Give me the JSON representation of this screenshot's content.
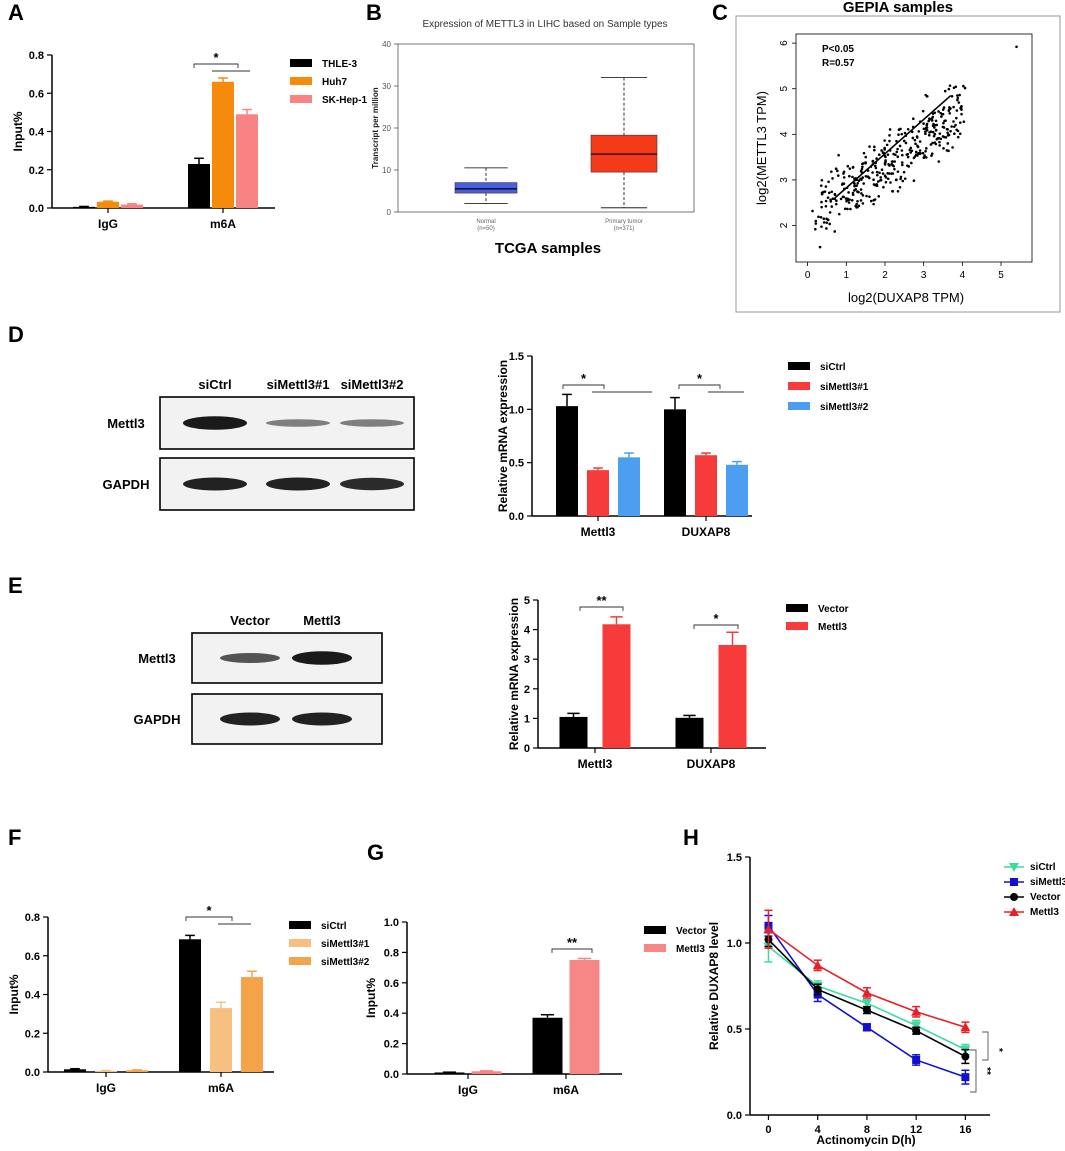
{
  "panels": {
    "A": "A",
    "B": "B",
    "C": "C",
    "D": "D",
    "E": "E",
    "F": "F",
    "G": "G",
    "H": "H"
  },
  "blots": {
    "D": {
      "lanes": [
        "siCtrl",
        "siMettl3#1",
        "siMettl3#2"
      ],
      "rows": [
        "Mettl3",
        "GAPDH"
      ],
      "intensity": [
        [
          0.95,
          0.35,
          0.35
        ],
        [
          0.9,
          0.9,
          0.85
        ]
      ]
    },
    "E": {
      "lanes": [
        "Vector",
        "Mettl3"
      ],
      "rows": [
        "Mettl3",
        "GAPDH"
      ],
      "intensity": [
        [
          0.6,
          0.95
        ],
        [
          0.9,
          0.9
        ]
      ]
    }
  },
  "colors": {
    "black": "#000000",
    "orange": "#f58a0b",
    "pink": "#f78383",
    "red": "#f73b3b",
    "blue": "#4c9ef0",
    "lightorange": "#f8c080",
    "midorange": "#f5a34a",
    "salmon": "#f78787",
    "h_sictrl": "#3cdca0",
    "h_simettl3": "#1010d0",
    "h_vector": "#000000",
    "h_mettl3": "#e8202a",
    "box_normal": "#4a5ee0",
    "box_tumor": "#f53a1a"
  },
  "chart_data": [
    {
      "id": "A",
      "type": "bar",
      "categories": [
        "IgG",
        "m6A"
      ],
      "series": [
        {
          "name": "THLE-3",
          "values": [
            0.006,
            0.23
          ],
          "errors": [
            0.002,
            0.03
          ],
          "color": "#000000"
        },
        {
          "name": "Huh7",
          "values": [
            0.033,
            0.66
          ],
          "errors": [
            0.003,
            0.02
          ],
          "color": "#f58a0b"
        },
        {
          "name": "SK-Hep-1",
          "values": [
            0.018,
            0.49
          ],
          "errors": [
            0.004,
            0.025
          ],
          "color": "#f78383"
        }
      ],
      "ylabel": "Input%",
      "ylim": [
        0,
        0.8
      ],
      "yticks": [
        "0.0",
        "0.2",
        "0.4",
        "0.6",
        "0.8"
      ],
      "sig": "*"
    },
    {
      "id": "B",
      "type": "box",
      "title": "Expression of METTL3 in LIHC based on Sample types",
      "ylabel": "Transcript per million",
      "ylim": [
        0,
        40
      ],
      "yticks": [
        "0",
        "10",
        "20",
        "30",
        "40"
      ],
      "groups": [
        {
          "name": "Normal",
          "n": "(n=50)",
          "min": 2,
          "q1": 4.5,
          "median": 5.5,
          "q3": 7,
          "max": 10.5,
          "color": "#4a5ee0"
        },
        {
          "name": "Primary tumor",
          "n": "(n=371)",
          "min": 1,
          "q1": 9.5,
          "median": 13.8,
          "q3": 18.3,
          "max": 32,
          "color": "#f53a1a"
        }
      ],
      "caption": "TCGA samples"
    },
    {
      "id": "C",
      "type": "scatter",
      "title": "GEPIA samples",
      "xlabel": "log2(DUXAP8 TPM)",
      "ylabel": "log2(METTL3 TPM)",
      "xlim": [
        -0.3,
        5.8
      ],
      "ylim": [
        1.2,
        6.2
      ],
      "xticks": [
        "0",
        "1",
        "2",
        "3",
        "4",
        "5"
      ],
      "yticks": [
        "2",
        "3",
        "4",
        "5",
        "6"
      ],
      "stats": [
        "P<0.05",
        "R=0.57"
      ],
      "fit": {
        "x": [
          0.7,
          3.7
        ],
        "y": [
          2.6,
          4.85
        ]
      },
      "n_points": 380
    },
    {
      "id": "D",
      "type": "bar",
      "categories": [
        "Mettl3",
        "DUXAP8"
      ],
      "series": [
        {
          "name": "siCtrl",
          "values": [
            1.03,
            1.0
          ],
          "errors": [
            0.11,
            0.11
          ],
          "color": "#000000"
        },
        {
          "name": "siMettl3#1",
          "values": [
            0.43,
            0.57
          ],
          "errors": [
            0.02,
            0.02
          ],
          "color": "#f73b3b"
        },
        {
          "name": "siMettl3#2",
          "values": [
            0.55,
            0.48
          ],
          "errors": [
            0.04,
            0.03
          ],
          "color": "#4c9ef0"
        }
      ],
      "ylabel": "Relative mRNA expression",
      "ylim": [
        0,
        1.5
      ],
      "yticks": [
        "0.0",
        "0.5",
        "1.0",
        "1.5"
      ],
      "sig": [
        "*",
        "*"
      ]
    },
    {
      "id": "E",
      "type": "bar",
      "categories": [
        "Mettl3",
        "DUXAP8"
      ],
      "series": [
        {
          "name": "Vector",
          "values": [
            1.05,
            1.02
          ],
          "errors": [
            0.12,
            0.08
          ],
          "color": "#000000"
        },
        {
          "name": "Mettl3",
          "values": [
            4.18,
            3.48
          ],
          "errors": [
            0.25,
            0.43
          ],
          "color": "#f73b3b"
        }
      ],
      "ylabel": "Relative mRNA expression",
      "ylim": [
        0,
        5
      ],
      "yticks": [
        "0",
        "1",
        "2",
        "3",
        "4",
        "5"
      ],
      "sig": [
        "**",
        "*"
      ]
    },
    {
      "id": "F",
      "type": "bar",
      "categories": [
        "IgG",
        "m6A"
      ],
      "series": [
        {
          "name": "siCtrl",
          "values": [
            0.014,
            0.685
          ],
          "errors": [
            0.003,
            0.02
          ],
          "color": "#000000"
        },
        {
          "name": "siMettl3#1",
          "values": [
            0.005,
            0.33
          ],
          "errors": [
            0.002,
            0.03
          ],
          "color": "#f8c080"
        },
        {
          "name": "siMettl3#2",
          "values": [
            0.009,
            0.49
          ],
          "errors": [
            0.002,
            0.03
          ],
          "color": "#f5a34a"
        }
      ],
      "ylabel": "Input%",
      "ylim": [
        0,
        0.8
      ],
      "yticks": [
        "0.0",
        "0.2",
        "0.4",
        "0.6",
        "0.8"
      ],
      "sig": "*"
    },
    {
      "id": "G",
      "type": "bar",
      "categories": [
        "IgG",
        "m6A"
      ],
      "series": [
        {
          "name": "Vector",
          "values": [
            0.01,
            0.37
          ],
          "errors": [
            0.002,
            0.02
          ],
          "color": "#000000"
        },
        {
          "name": "Mettl3",
          "values": [
            0.018,
            0.75
          ],
          "errors": [
            0.003,
            0.01
          ],
          "color": "#f78787"
        }
      ],
      "ylabel": "Input%",
      "ylim": [
        0,
        1.0
      ],
      "yticks": [
        "0.0",
        "0.2",
        "0.4",
        "0.6",
        "0.8",
        "1.0"
      ],
      "sig": "**"
    },
    {
      "id": "H",
      "type": "line",
      "x": [
        0,
        4,
        8,
        12,
        16
      ],
      "xlabel": "Actinomycin D(h)",
      "ylabel": "Relative DUXAP8 level",
      "xlim": [
        -1.5,
        18
      ],
      "ylim": [
        0,
        1.5
      ],
      "xticks": [
        "0",
        "4",
        "8",
        "12",
        "16"
      ],
      "yticks": [
        "0.0",
        "0.5",
        "1.0",
        "1.5"
      ],
      "series": [
        {
          "name": "siCtrl",
          "values": [
            0.98,
            0.75,
            0.65,
            0.52,
            0.38
          ],
          "errors": [
            0.09,
            0.03,
            0.02,
            0.03,
            0.03
          ],
          "color": "#3cdca0",
          "marker": "tri-down"
        },
        {
          "name": "siMettl3",
          "values": [
            1.1,
            0.7,
            0.51,
            0.32,
            0.22
          ],
          "errors": [
            0.06,
            0.04,
            0.02,
            0.03,
            0.04
          ],
          "color": "#1010d0",
          "marker": "square"
        },
        {
          "name": "Vector",
          "values": [
            1.02,
            0.73,
            0.61,
            0.49,
            0.34
          ],
          "errors": [
            0.04,
            0.03,
            0.02,
            0.02,
            0.04
          ],
          "color": "#000000",
          "marker": "circle"
        },
        {
          "name": "Mettl3",
          "values": [
            1.08,
            0.87,
            0.71,
            0.6,
            0.51
          ],
          "errors": [
            0.11,
            0.03,
            0.03,
            0.03,
            0.03
          ],
          "color": "#e8202a",
          "marker": "tri-up"
        }
      ],
      "sig": [
        "*",
        "**"
      ]
    }
  ]
}
